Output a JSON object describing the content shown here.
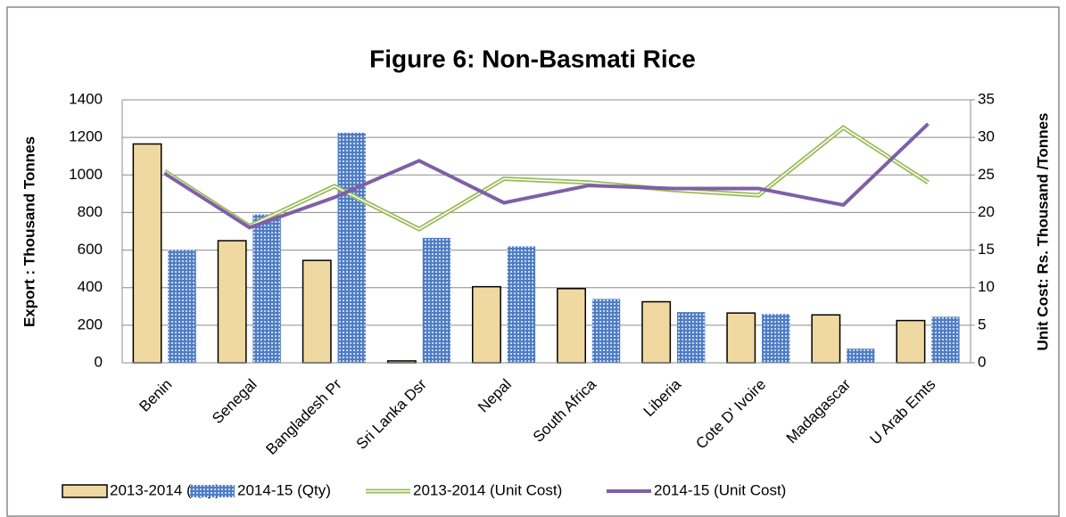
{
  "chart_data": {
    "type": "bar",
    "title": "Figure 6: Non-Basmati Rice",
    "y_label": "Export : Thousand Tonnes",
    "y2_label": "Unit Cost: Rs. Thousand /Tonnes",
    "categories": [
      "Benin",
      "Senegal",
      "Bangladesh Pr",
      "Sri Lanka Dsr",
      "Nepal",
      "South Africa",
      "Liberia",
      "Cote D' Ivoire",
      "Madagascar",
      "U Arab Emts"
    ],
    "series": [
      {
        "name": "2013-2014 (Qty)",
        "type": "bar",
        "color": "#f0d9a0",
        "values": [
          1165,
          650,
          545,
          10,
          405,
          395,
          325,
          265,
          255,
          225
        ]
      },
      {
        "name": "2014-15 (Qty)",
        "type": "bar",
        "color": "#4f7dc4",
        "pattern": true,
        "values": [
          600,
          790,
          1225,
          665,
          620,
          340,
          270,
          260,
          75,
          245
        ]
      },
      {
        "name": "2013-2014 (Unit Cost)",
        "type": "line",
        "axis": "y2",
        "color": "#9bbb59",
        "double": true,
        "values": [
          25.5,
          18.2,
          23.5,
          17.8,
          24.5,
          24,
          23,
          22.3,
          31.3,
          24
        ]
      },
      {
        "name": "2014-15 (Unit Cost)",
        "type": "line",
        "axis": "y2",
        "color": "#7f5fa5",
        "values": [
          25.2,
          18,
          22,
          26.9,
          21.3,
          23.6,
          23.2,
          23.2,
          21,
          31.8
        ]
      }
    ],
    "ylim": [
      0,
      1400
    ],
    "yticks": [
      0,
      200,
      400,
      600,
      800,
      1000,
      1200,
      1400
    ],
    "y2lim": [
      0,
      35
    ],
    "y2ticks": [
      0,
      5,
      10,
      15,
      20,
      25,
      30,
      35
    ],
    "grid": true,
    "legend": "bottom"
  }
}
